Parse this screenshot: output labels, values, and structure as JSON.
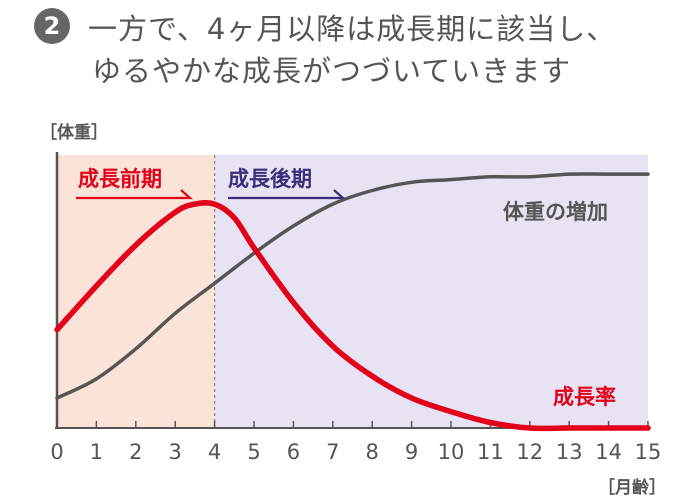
{
  "heading": {
    "badge": "2",
    "line1": "一方で、4ヶ月以降は成長期に該当し、",
    "line2": "ゆるやかな成長がつづいていきます"
  },
  "colors": {
    "early_bg": "#fbe3d8",
    "late_bg": "#e7e3f2",
    "growth_rate": "#e2001a",
    "weight": "#555555",
    "late_label": "#3a2d7d"
  },
  "chart_data": {
    "type": "line",
    "ylabel": "［体重］",
    "xlabel": "［月齢］",
    "xlim": [
      0,
      15
    ],
    "ylim": [
      0,
      100
    ],
    "x_ticks": [
      "0",
      "1",
      "2",
      "3",
      "4",
      "5",
      "6",
      "7",
      "8",
      "9",
      "10",
      "11",
      "12",
      "13",
      "14",
      "15"
    ],
    "grid": false,
    "regions": [
      {
        "name": "成長前期",
        "from": 0,
        "to": 4
      },
      {
        "name": "成長後期",
        "from": 4,
        "to": 15
      }
    ],
    "series": [
      {
        "name": "成長率",
        "x": [
          0,
          1,
          2,
          3,
          3.5,
          4,
          4.5,
          5,
          6,
          7,
          8,
          9,
          10,
          11,
          12,
          13,
          14,
          15
        ],
        "values": [
          36,
          52,
          67,
          79,
          82,
          82,
          77,
          66,
          46,
          30,
          19,
          11,
          6,
          2,
          0,
          0,
          0,
          0
        ]
      },
      {
        "name": "体重の増加",
        "x": [
          0,
          1,
          2,
          3,
          4,
          5,
          6,
          7,
          8,
          9,
          10,
          11,
          12,
          13,
          14,
          15
        ],
        "values": [
          11,
          18,
          29,
          42,
          53,
          64,
          74,
          82,
          87,
          90,
          91,
          92,
          92,
          93,
          93,
          93
        ]
      }
    ]
  }
}
